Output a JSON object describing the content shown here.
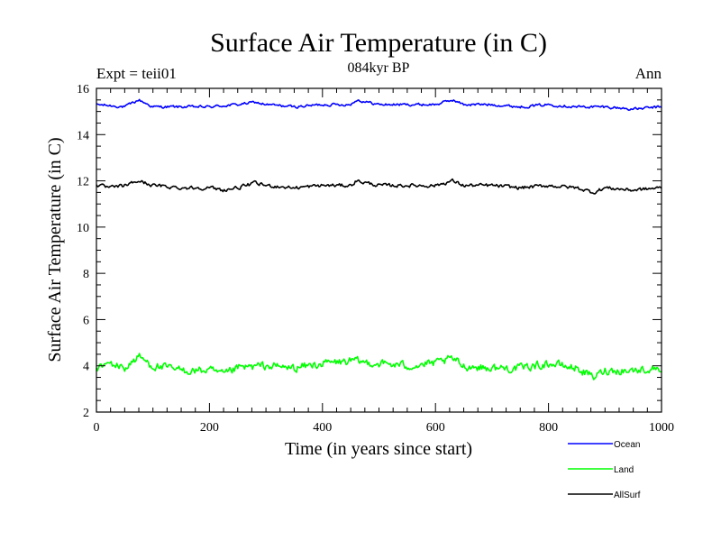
{
  "chart_data": {
    "type": "line",
    "title": "Surface Air Temperature (in C)",
    "subtitle": "084kyr BP",
    "left_label": "Expt = teii01",
    "right_label": "Ann",
    "xlabel": "Time (in years since start)",
    "ylabel": "Surface Air Temperature (in C)",
    "xlim": [
      0,
      1000
    ],
    "ylim": [
      2,
      16
    ],
    "x_ticks": [
      0,
      200,
      400,
      600,
      800,
      1000
    ],
    "y_ticks": [
      2,
      4,
      6,
      8,
      10,
      12,
      14,
      16
    ],
    "grid": false,
    "legend_position": "bottom-right",
    "series": [
      {
        "name": "Ocean",
        "color": "#0000ff",
        "x": [
          0,
          50,
          75,
          100,
          150,
          200,
          250,
          280,
          300,
          350,
          400,
          450,
          460,
          500,
          550,
          600,
          630,
          650,
          700,
          750,
          800,
          850,
          900,
          950,
          1000
        ],
        "values": [
          15.3,
          15.2,
          15.5,
          15.2,
          15.2,
          15.2,
          15.3,
          15.4,
          15.3,
          15.2,
          15.3,
          15.3,
          15.5,
          15.3,
          15.3,
          15.3,
          15.5,
          15.3,
          15.3,
          15.2,
          15.3,
          15.2,
          15.2,
          15.1,
          15.2
        ]
      },
      {
        "name": "Land",
        "color": "#00ff00",
        "x": [
          0,
          25,
          50,
          75,
          100,
          150,
          200,
          225,
          250,
          300,
          350,
          400,
          450,
          500,
          550,
          600,
          630,
          650,
          700,
          750,
          800,
          850,
          880,
          900,
          950,
          1000
        ],
        "values": [
          3.9,
          4.1,
          3.9,
          4.4,
          4.0,
          3.8,
          3.8,
          3.6,
          3.9,
          4.0,
          3.9,
          4.1,
          4.2,
          4.1,
          4.0,
          4.1,
          4.3,
          4.0,
          3.9,
          3.9,
          4.1,
          3.9,
          3.5,
          3.8,
          3.8,
          3.9
        ]
      },
      {
        "name": "AllSurf",
        "color": "#000000",
        "x": [
          0,
          25,
          50,
          75,
          100,
          150,
          200,
          225,
          250,
          280,
          300,
          350,
          400,
          450,
          460,
          500,
          550,
          600,
          630,
          650,
          700,
          750,
          800,
          850,
          880,
          900,
          950,
          1000
        ],
        "values": [
          11.8,
          11.7,
          11.8,
          12.0,
          11.8,
          11.7,
          11.7,
          11.6,
          11.7,
          11.9,
          11.8,
          11.7,
          11.8,
          11.8,
          12.0,
          11.8,
          11.8,
          11.8,
          12.0,
          11.8,
          11.8,
          11.7,
          11.8,
          11.7,
          11.5,
          11.7,
          11.6,
          11.7
        ]
      }
    ]
  }
}
